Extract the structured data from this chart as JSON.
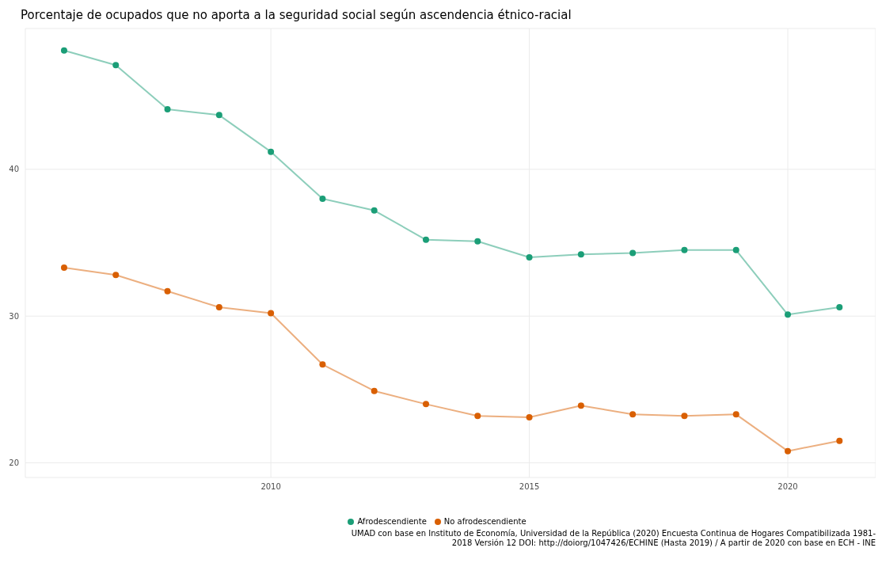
{
  "chart_data": {
    "type": "line",
    "title": "Porcentaje de ocupados que no aporta a la seguridad social según ascendencia étnico-racial",
    "x": [
      2006,
      2007,
      2008,
      2009,
      2010,
      2011,
      2012,
      2013,
      2014,
      2015,
      2016,
      2017,
      2018,
      2019,
      2020,
      2021
    ],
    "series": [
      {
        "name": "Afrodescendiente",
        "color": "#1b9e77",
        "values": [
          48.1,
          47.1,
          44.1,
          43.7,
          41.2,
          38.0,
          37.2,
          35.2,
          35.1,
          34.0,
          34.2,
          34.3,
          34.5,
          34.5,
          30.1,
          30.6
        ]
      },
      {
        "name": "No afrodescendiente",
        "color": "#d95f02",
        "values": [
          33.3,
          32.8,
          31.7,
          30.6,
          30.2,
          26.7,
          24.9,
          24.0,
          23.2,
          23.1,
          23.9,
          23.3,
          23.2,
          23.3,
          20.8,
          21.5
        ]
      }
    ],
    "xlim": [
      2005.25,
      2021.7
    ],
    "xticks": [
      2010,
      2015,
      2020
    ],
    "ylim": [
      19,
      49.6
    ],
    "yticks": [
      20,
      30,
      40
    ],
    "grid": true,
    "legend": "bottom",
    "marker": "circle",
    "line_style": "solid",
    "annotations": [
      "UMAD con base en Instituto de Economía, Universidad de la República (2020) Encuesta Continua de Hogares Compatibilizada 1981-2018 Versión 12 DOI: http://doiorg/1047426/ECHINE (Hasta 2019) / A partir de 2020 con base en ECH - INE"
    ]
  }
}
